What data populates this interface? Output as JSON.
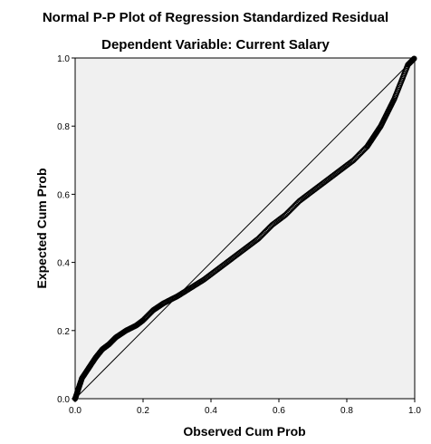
{
  "chart_data": {
    "type": "scatter",
    "title": "Normal P-P Plot of Regression Standardized Residual",
    "subtitle": "Dependent Variable: Current Salary",
    "xlabel": "Observed Cum Prob",
    "ylabel": "Expected Cum Prob",
    "xlim": [
      0,
      1
    ],
    "ylim": [
      0,
      1
    ],
    "xticks": [
      "0.0",
      "0.2",
      "0.4",
      "0.6",
      "0.8",
      "1.0"
    ],
    "yticks": [
      "0.0",
      "0.2",
      "0.4",
      "0.6",
      "0.8",
      "1.0"
    ],
    "grid": false,
    "reference_line": [
      [
        0,
        0
      ],
      [
        1,
        1
      ]
    ],
    "curve": [
      [
        0.0,
        0.0
      ],
      [
        0.01,
        0.03
      ],
      [
        0.02,
        0.06
      ],
      [
        0.04,
        0.09
      ],
      [
        0.06,
        0.12
      ],
      [
        0.08,
        0.145
      ],
      [
        0.1,
        0.16
      ],
      [
        0.12,
        0.18
      ],
      [
        0.15,
        0.2
      ],
      [
        0.18,
        0.215
      ],
      [
        0.2,
        0.23
      ],
      [
        0.23,
        0.26
      ],
      [
        0.26,
        0.28
      ],
      [
        0.3,
        0.3
      ],
      [
        0.34,
        0.325
      ],
      [
        0.38,
        0.35
      ],
      [
        0.42,
        0.38
      ],
      [
        0.46,
        0.41
      ],
      [
        0.5,
        0.44
      ],
      [
        0.54,
        0.47
      ],
      [
        0.58,
        0.51
      ],
      [
        0.62,
        0.54
      ],
      [
        0.66,
        0.58
      ],
      [
        0.7,
        0.61
      ],
      [
        0.74,
        0.64
      ],
      [
        0.78,
        0.67
      ],
      [
        0.82,
        0.7
      ],
      [
        0.86,
        0.74
      ],
      [
        0.88,
        0.77
      ],
      [
        0.9,
        0.8
      ],
      [
        0.92,
        0.84
      ],
      [
        0.94,
        0.88
      ],
      [
        0.96,
        0.93
      ],
      [
        0.98,
        0.98
      ],
      [
        1.0,
        1.0
      ]
    ],
    "colors": {
      "plot_background": "#f0f0f0",
      "points": "#000000",
      "line": "#000000"
    }
  }
}
